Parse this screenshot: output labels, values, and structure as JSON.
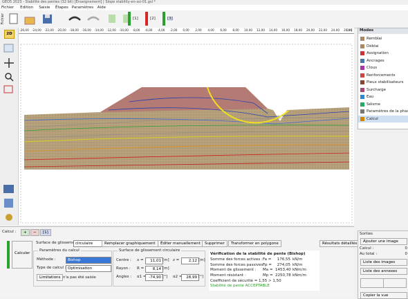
{
  "title_bar": "GEO5 2023 - Stabilité des pentes (32 bit) [Enseignement] | Slope stability-en-ssi-01.gsl *",
  "menu": [
    "Fichier",
    "Edition",
    "Saisie",
    "Étapes",
    "Paramètres",
    "Aide"
  ],
  "toolbar": {
    "file_label": "Fichier",
    "stages": [
      "[1]",
      "[2]",
      "[3]"
    ]
  },
  "left_tools": {
    "view_2d": "2D"
  },
  "ruler": {
    "labels": [
      "-26,00",
      "-24,00",
      "-22,00",
      "-20,00",
      "-18,00",
      "-16,00",
      "-14,00",
      "-12,00",
      "-10,00",
      "-8,00",
      "-6,00",
      "-4,00",
      "-2,00",
      "0,00",
      "2,00",
      "4,00",
      "6,00",
      "8,00",
      "10,00",
      "12,00",
      "14,00",
      "16,00",
      "18,00",
      "20,00",
      "22,00",
      "24,00",
      "26,00"
    ],
    "unit": "[m]"
  },
  "modes": {
    "title": "Modes",
    "items": [
      "Remblai",
      "Déblai",
      "Assignation",
      "Ancrages",
      "Clous",
      "Renforcements",
      "Pieux stabilisateurs",
      "Surcharge",
      "Eau",
      "Séisme",
      "Paramètres de la phase",
      "Calcul"
    ]
  },
  "calc_panel": {
    "label": "Calcul :",
    "stage": "[1]",
    "run_button": "Calculer",
    "surface_label": "Surface de glissement :",
    "surface_type": "circulaire",
    "actions": [
      "Remplacer graphiquement",
      "Éditer manuellement",
      "Supprimer",
      "Transformer en polygone"
    ],
    "details": "Résultats détaillés",
    "params": {
      "legend": "Paramètres du calcul",
      "method_label": "Méthode :",
      "method": "Bishop",
      "type_label": "Type de calcul :",
      "type": "Optimisation",
      "limits_button": "Limitations",
      "limits_text": "n'a pas été saisie"
    },
    "circle": {
      "legend": "Surface de glissement circulaire",
      "rows": [
        {
          "label": "Centre :",
          "fields": [
            {
              "name": "x =",
              "value": "11,01",
              "unit": "[m]"
            },
            {
              "name": "z =",
              "value": "2,12",
              "unit": "[m]"
            }
          ]
        },
        {
          "label": "Rayon :",
          "fields": [
            {
              "name": "R =",
              "value": "8,14",
              "unit": "[m]"
            }
          ]
        },
        {
          "label": "Angles :",
          "fields": [
            {
              "name": "α1 =",
              "value": "-74,90",
              "unit": "[°]"
            },
            {
              "name": "α2 =",
              "value": "28,99",
              "unit": "[°]"
            }
          ]
        }
      ]
    },
    "results": {
      "title": "Vérification de la stabilité de pente (Bishop)",
      "rows": [
        {
          "label": "Somme des forces actives :",
          "symbol": "Fa =",
          "value": "176,55",
          "unit": "kN/m"
        },
        {
          "label": "Somme des forces passives :",
          "symbol": "Fp =",
          "value": "274,05",
          "unit": "kN/m"
        },
        {
          "label": "Moment de glissement :",
          "symbol": "Ma =",
          "value": "1453,40",
          "unit": "kNm/m"
        },
        {
          "label": "Moment résistant :",
          "symbol": "Mp =",
          "value": "2250,78",
          "unit": "kNm/m"
        }
      ],
      "factor": "Coefficient de sécurité = 1,55 > 1,50",
      "verdict": "Stabilité de pente ACCEPTABLE"
    }
  },
  "outputs": {
    "title": "Sorties",
    "add_image": "Ajouter une image",
    "calc_label": "Calcul :",
    "calc_count": "0",
    "total_label": "Au total :",
    "total_count": "0",
    "list_images": "Liste des images",
    "list_annexes": "Liste des annexes",
    "copy_view": "Copier la vue"
  }
}
